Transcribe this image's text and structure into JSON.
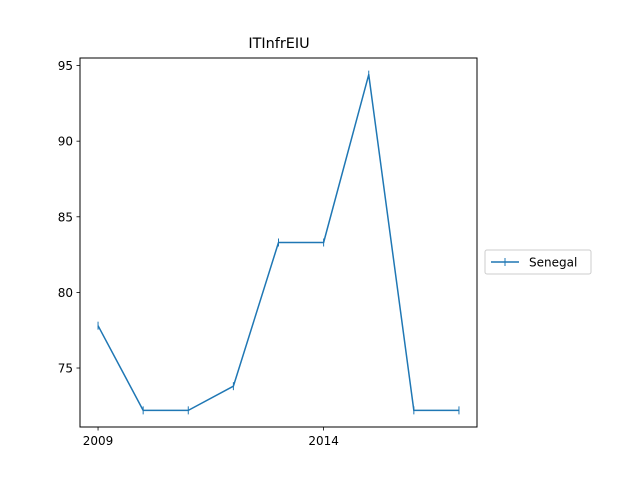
{
  "chart_data": {
    "type": "line",
    "title": "ITInfrEIU",
    "xlabel": "",
    "ylabel": "",
    "x": [
      2009,
      2010,
      2011,
      2012,
      2013,
      2014,
      2015,
      2016,
      2017
    ],
    "series": [
      {
        "name": "Senegal",
        "color": "#1f77b4",
        "marker": "vertical-line",
        "values": [
          77.8,
          72.2,
          72.2,
          73.8,
          83.3,
          83.3,
          94.4,
          72.2,
          72.2
        ]
      }
    ],
    "xticks": [
      "2009",
      "2014"
    ],
    "yticks": [
      "75",
      "80",
      "85",
      "90",
      "95"
    ],
    "xlim": [
      2008.6,
      2017.4
    ],
    "ylim": [
      71.1,
      95.5
    ],
    "grid": false,
    "legend_position": "right"
  }
}
